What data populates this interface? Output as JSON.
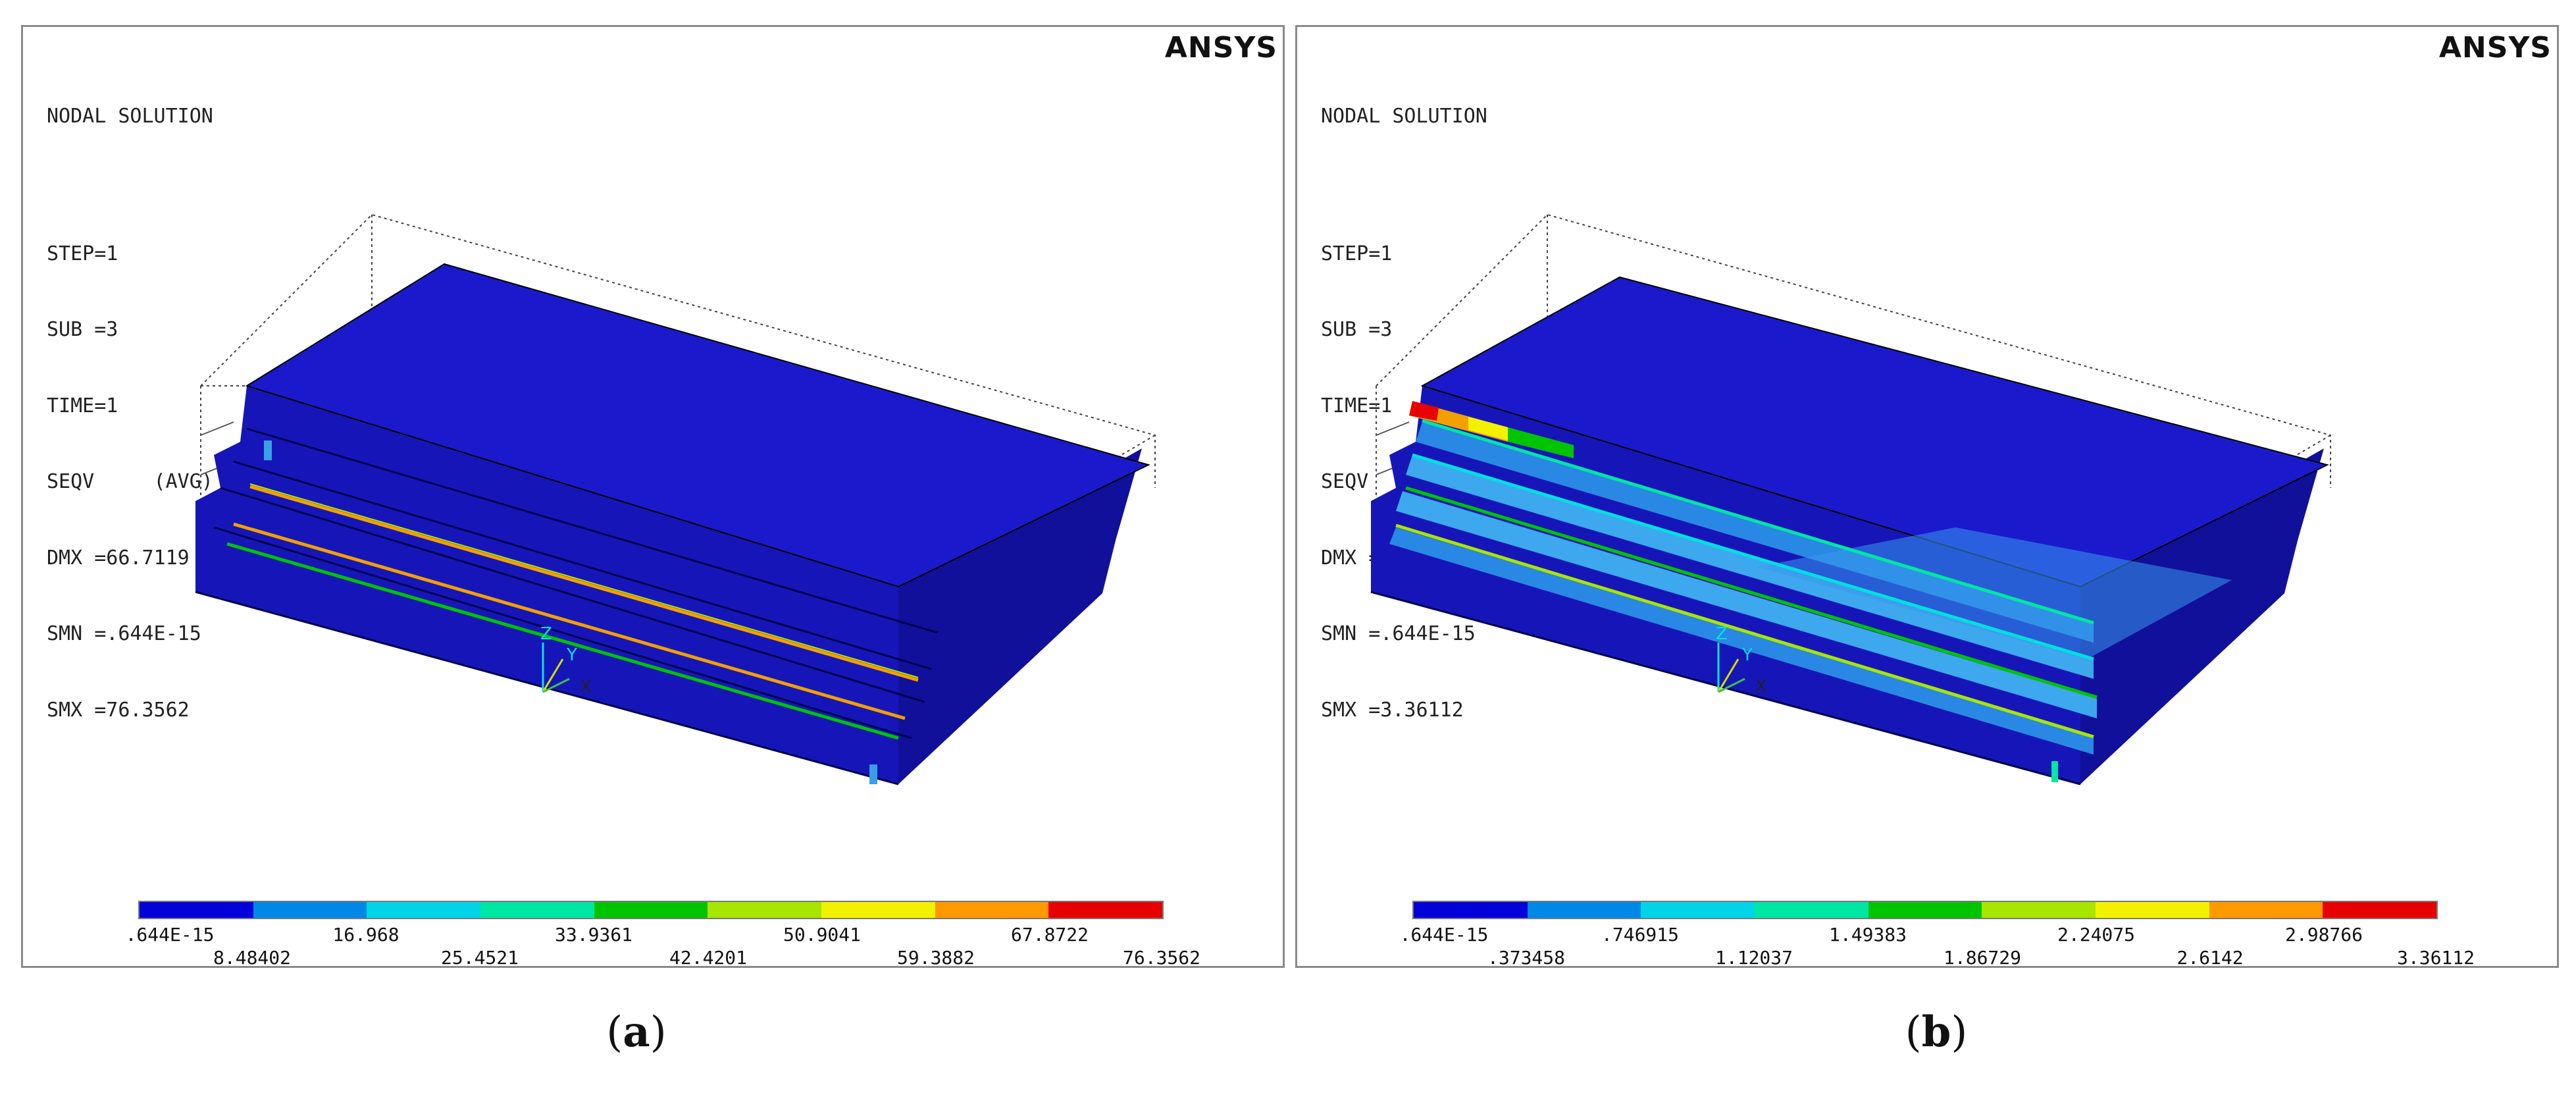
{
  "colors": {
    "legend": [
      "#0000d9",
      "#0088e6",
      "#00d4e8",
      "#00e6a3",
      "#00c400",
      "#a6e600",
      "#f2f200",
      "#ff9900",
      "#e60000"
    ],
    "model_blue": "#1a1acc",
    "model_blue_dark": "#10109a",
    "model_blue_side": "#1616b8"
  },
  "panels": [
    {
      "id": "a",
      "brand": "ANSYS",
      "info": [
        "NODAL SOLUTION",
        "STEP=1",
        "SUB =3",
        "TIME=1",
        "SEQV     (AVG)",
        "DMX =66.7119",
        "SMN =.644E-15",
        "SMX =76.3562"
      ],
      "legend_top": [
        ".644E-15",
        "16.968",
        "33.9361",
        "50.9041",
        "67.8722"
      ],
      "legend_bottom": [
        "8.48402",
        "25.4521",
        "42.4201",
        "59.3882",
        "76.3562"
      ],
      "axis_labels": [
        "Z",
        "Y",
        "X"
      ],
      "caption_label": "a"
    },
    {
      "id": "b",
      "brand": "ANSYS",
      "info": [
        "NODAL SOLUTION",
        "STEP=1",
        "SUB =3",
        "TIME=1",
        "SEQV     (AVG)",
        "DMX =66.7119",
        "SMN =.644E-15",
        "SMX =3.36112"
      ],
      "legend_top": [
        ".644E-15",
        ".746915",
        "1.49383",
        "2.24075",
        "2.98766"
      ],
      "legend_bottom": [
        ".373458",
        "1.12037",
        "1.86729",
        "2.6142",
        "3.36112"
      ],
      "axis_labels": [
        "Z",
        "Y",
        "X"
      ],
      "caption_label": "b"
    }
  ]
}
